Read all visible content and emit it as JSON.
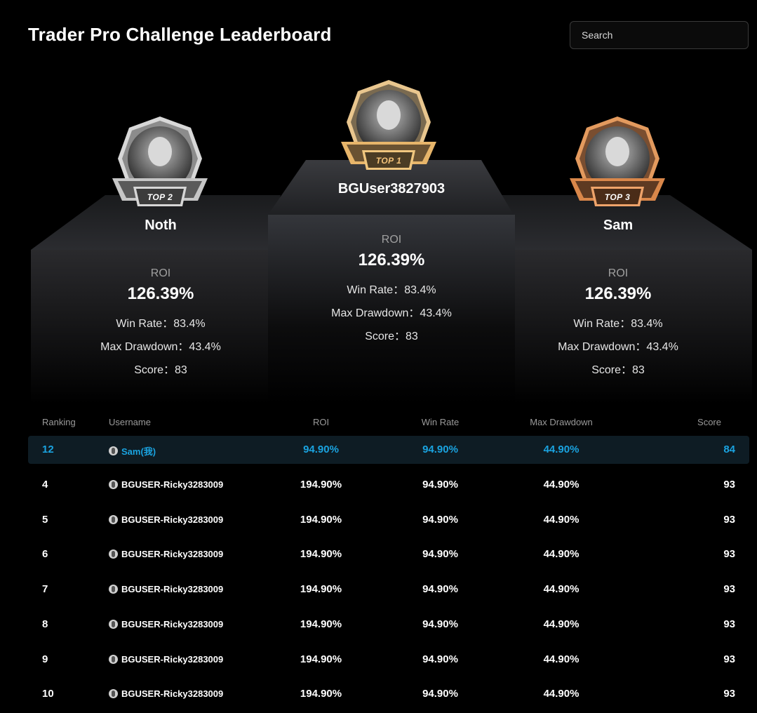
{
  "header": {
    "title": "Trader Pro Challenge Leaderboard",
    "search_placeholder": "Search"
  },
  "podium": {
    "first": {
      "badge": "TOP 1",
      "name": "BGUser3827903",
      "roi_label": "ROI",
      "roi": "126.39%",
      "win_rate": "Win Rate：83.4%",
      "max_drawdown": "Max Drawdown：43.4%",
      "score": "Score：83"
    },
    "second": {
      "badge": "TOP 2",
      "name": "Noth",
      "roi_label": "ROI",
      "roi": "126.39%",
      "win_rate": "Win Rate：83.4%",
      "max_drawdown": "Max Drawdown：43.4%",
      "score": "Score：83"
    },
    "third": {
      "badge": "TOP 3",
      "name": "Sam",
      "roi_label": "ROI",
      "roi": "126.39%",
      "win_rate": "Win Rate：83.4%",
      "max_drawdown": "Max Drawdown：43.4%",
      "score": "Score：83"
    }
  },
  "table": {
    "headers": {
      "ranking": "Ranking",
      "username": "Username",
      "roi": "ROI",
      "win_rate": "Win Rate",
      "max_drawdown": "Max Drawdown",
      "score": "Score"
    },
    "me": {
      "rank": "12",
      "user": "Sam(我)",
      "roi": "94.90%",
      "win_rate": "94.90%",
      "max_drawdown": "44.90%",
      "score": "84"
    },
    "rows": [
      {
        "rank": "4",
        "user": "BGUSER-Ricky3283009",
        "roi": "194.90%",
        "win_rate": "94.90%",
        "max_drawdown": "44.90%",
        "score": "93"
      },
      {
        "rank": "5",
        "user": "BGUSER-Ricky3283009",
        "roi": "194.90%",
        "win_rate": "94.90%",
        "max_drawdown": "44.90%",
        "score": "93"
      },
      {
        "rank": "6",
        "user": "BGUSER-Ricky3283009",
        "roi": "194.90%",
        "win_rate": "94.90%",
        "max_drawdown": "44.90%",
        "score": "93"
      },
      {
        "rank": "7",
        "user": "BGUSER-Ricky3283009",
        "roi": "194.90%",
        "win_rate": "94.90%",
        "max_drawdown": "44.90%",
        "score": "93"
      },
      {
        "rank": "8",
        "user": "BGUSER-Ricky3283009",
        "roi": "194.90%",
        "win_rate": "94.90%",
        "max_drawdown": "44.90%",
        "score": "93"
      },
      {
        "rank": "9",
        "user": "BGUSER-Ricky3283009",
        "roi": "194.90%",
        "win_rate": "94.90%",
        "max_drawdown": "44.90%",
        "score": "93"
      },
      {
        "rank": "10",
        "user": "BGUSER-Ricky3283009",
        "roi": "194.90%",
        "win_rate": "94.90%",
        "max_drawdown": "44.90%",
        "score": "93"
      }
    ]
  },
  "colors": {
    "background": "#000000",
    "highlight_text": "#1aa3e0",
    "highlight_row": "#0e1c24",
    "gold": "#e7b56a",
    "silver": "#c8c8c8",
    "bronze": "#d9874a"
  },
  "icons": {
    "user_avatar": "user-avatar-icon",
    "podium_avatar": "portrait-avatar"
  }
}
